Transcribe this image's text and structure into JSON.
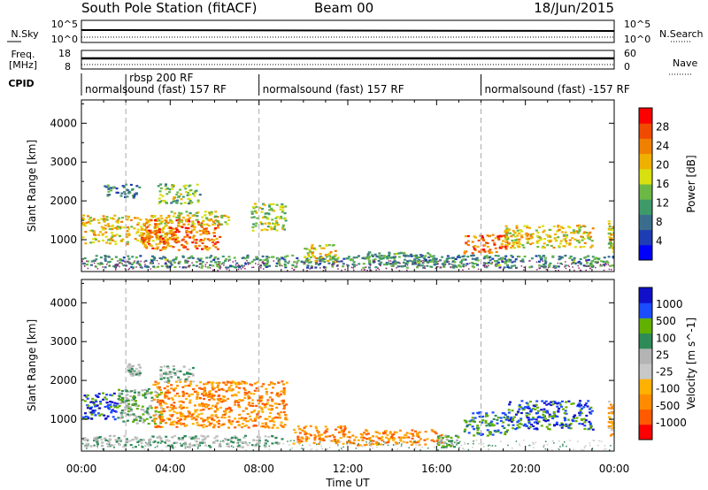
{
  "header": {
    "title": "South Pole Station (fitACF)",
    "beam": "Beam 00",
    "date": "18/Jun/2015"
  },
  "noise_panel": {
    "left_label": "N.Sky",
    "right_label": "N.Search",
    "left_ticks": [
      "10^5",
      "10^0"
    ],
    "right_ticks": [
      "10^5",
      "10^0"
    ]
  },
  "freq_panel": {
    "left_label_line1": "Freq.",
    "left_label_line2": "[MHz]",
    "right_label": "Nave",
    "left_ticks": [
      "18",
      "8"
    ],
    "right_ticks": [
      "60",
      "0"
    ]
  },
  "cpid_panel": {
    "label": "CPID",
    "modes": [
      {
        "label": "normalsound (fast) 157 RF",
        "start_hour": 0
      },
      {
        "label": "rbsp 200 RF",
        "start_hour": 2
      },
      {
        "label": "normalsound (fast) 157 RF",
        "start_hour": 8
      },
      {
        "label": "normalsound (fast) -157 RF",
        "start_hour": 18
      }
    ]
  },
  "x_axis": {
    "label": "Time UT",
    "ticks": [
      "00:00",
      "04:00",
      "08:00",
      "12:00",
      "16:00",
      "20:00",
      "00:00"
    ]
  },
  "colors": {
    "power": [
      "#0000ff",
      "#1e3cb4",
      "#3a6e8c",
      "#3f9a6a",
      "#6cb845",
      "#d8e010",
      "#f0b000",
      "#f08000",
      "#f04a00",
      "#ff0000"
    ],
    "velocity": [
      "#ff0000",
      "#ff5a00",
      "#ff8c00",
      "#ffb000",
      "#c8c8c8",
      "#b4b4b4",
      "#2e8b57",
      "#62b000",
      "#1c4cff",
      "#1010c8"
    ]
  },
  "chart_data": [
    {
      "type": "heatmap",
      "title": "",
      "xlabel": "Time UT",
      "ylabel": "Slant Range [km]",
      "xlim": [
        0,
        24
      ],
      "ylim": [
        180,
        4600
      ],
      "y_ticks": [
        1000,
        2000,
        3000,
        4000
      ],
      "colorbar_label": "Power [dB]",
      "colorbar_range": [
        0,
        32
      ],
      "colorbar_ticks": [
        "4",
        "8",
        "12",
        "16",
        "20",
        "24",
        "28"
      ],
      "regions": [
        {
          "t0": 0.0,
          "t1": 4.2,
          "r0": 900,
          "r1": 1650,
          "level": 20
        },
        {
          "t0": 2.6,
          "t1": 6.2,
          "r0": 750,
          "r1": 1550,
          "level": 26
        },
        {
          "t0": 4.0,
          "t1": 6.6,
          "r0": 1400,
          "r1": 1750,
          "level": 18
        },
        {
          "t0": 7.6,
          "t1": 9.2,
          "r0": 1250,
          "r1": 1950,
          "level": 16
        },
        {
          "t0": 1.0,
          "t1": 2.6,
          "r0": 2100,
          "r1": 2450,
          "level": 9
        },
        {
          "t0": 3.4,
          "t1": 5.3,
          "r0": 1950,
          "r1": 2450,
          "level": 14
        },
        {
          "t0": 0.0,
          "t1": 24.0,
          "r0": 300,
          "r1": 620,
          "level": 10
        },
        {
          "t0": 10.0,
          "t1": 11.4,
          "r0": 420,
          "r1": 900,
          "level": 18
        },
        {
          "t0": 12.8,
          "t1": 16.0,
          "r0": 380,
          "r1": 700,
          "level": 11
        },
        {
          "t0": 17.2,
          "t1": 19.2,
          "r0": 650,
          "r1": 1150,
          "level": 26
        },
        {
          "t0": 19.0,
          "t1": 23.0,
          "r0": 800,
          "r1": 1400,
          "level": 19
        },
        {
          "t0": 23.7,
          "t1": 24.0,
          "r0": 700,
          "r1": 1500,
          "level": 18
        }
      ]
    },
    {
      "type": "heatmap",
      "title": "",
      "xlabel": "Time UT",
      "ylabel": "Slant Range [km]",
      "xlim": [
        0,
        24
      ],
      "ylim": [
        180,
        4600
      ],
      "y_ticks": [
        1000,
        2000,
        3000,
        4000
      ],
      "colorbar_label": "Velocity [m s^-1]",
      "colorbar_ticks": [
        "1000",
        "500",
        "100",
        "25",
        "-25",
        "-100",
        "-500",
        "-1000"
      ],
      "regions": [
        {
          "t0": 0.0,
          "t1": 1.6,
          "r0": 1000,
          "r1": 1700,
          "level": 8
        },
        {
          "t0": 1.6,
          "t1": 3.6,
          "r0": 900,
          "r1": 1800,
          "level": 6
        },
        {
          "t0": 3.2,
          "t1": 9.2,
          "r0": 800,
          "r1": 2000,
          "level": 2
        },
        {
          "t0": 2.0,
          "t1": 2.6,
          "r0": 2150,
          "r1": 2450,
          "level": 5
        },
        {
          "t0": 3.5,
          "t1": 5.0,
          "r0": 1950,
          "r1": 2400,
          "level": 5
        },
        {
          "t0": 0.0,
          "t1": 9.0,
          "r0": 300,
          "r1": 600,
          "level": 5
        },
        {
          "t0": 9.5,
          "t1": 12.0,
          "r0": 380,
          "r1": 850,
          "level": 2
        },
        {
          "t0": 12.0,
          "t1": 16.2,
          "r0": 350,
          "r1": 750,
          "level": 2
        },
        {
          "t0": 16.0,
          "t1": 17.0,
          "r0": 300,
          "r1": 600,
          "level": 6
        },
        {
          "t0": 17.2,
          "t1": 19.2,
          "r0": 600,
          "r1": 1200,
          "level": 7
        },
        {
          "t0": 19.2,
          "t1": 23.0,
          "r0": 750,
          "r1": 1500,
          "level": 8
        },
        {
          "t0": 23.7,
          "t1": 24.0,
          "r0": 600,
          "r1": 1500,
          "level": 3
        }
      ]
    }
  ]
}
